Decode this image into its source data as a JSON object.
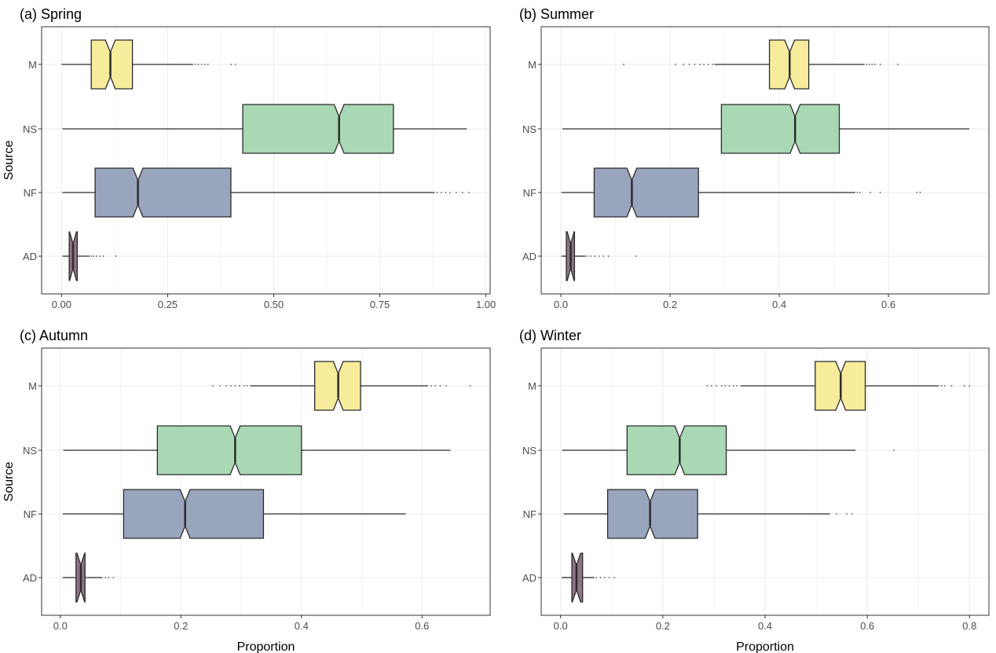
{
  "chart_data": [
    {
      "type": "boxplot",
      "orientation": "horizontal",
      "notched": true,
      "title": "(a) Spring",
      "xlabel": "",
      "ylabel": "Source",
      "xlim": [
        -0.047,
        1.01
      ],
      "xticks": [
        0,
        0.25,
        0.5,
        0.75,
        1.0
      ],
      "xtick_labels": [
        "0.00",
        "0.25",
        "0.50",
        "0.75",
        "1.00"
      ],
      "categories": [
        "M",
        "NS",
        "NF",
        "AD"
      ],
      "grid": true,
      "boxes": [
        {
          "category": "M",
          "whisker_low": 0.0,
          "q1": 0.07,
          "median": 0.115,
          "q3": 0.167,
          "whisker_high": 0.31,
          "outliers": [
            0.315,
            0.322,
            0.33,
            0.338,
            0.345,
            0.4,
            0.41
          ]
        },
        {
          "category": "NS",
          "whisker_low": 0.002,
          "q1": 0.427,
          "median": 0.654,
          "q3": 0.782,
          "whisker_high": 0.955,
          "outliers": []
        },
        {
          "category": "NF",
          "whisker_low": 0.002,
          "q1": 0.079,
          "median": 0.18,
          "q3": 0.399,
          "whisker_high": 0.879,
          "outliers": [
            0.885,
            0.895,
            0.905,
            0.915,
            0.93,
            0.945,
            0.96
          ]
        },
        {
          "category": "AD",
          "whisker_low": 0.002,
          "q1": 0.018,
          "median": 0.027,
          "q3": 0.037,
          "whisker_high": 0.066,
          "outliers": [
            0.07,
            0.075,
            0.082,
            0.09,
            0.098,
            0.128
          ]
        }
      ]
    },
    {
      "type": "boxplot",
      "orientation": "horizontal",
      "notched": true,
      "title": "(b) Summer",
      "xlabel": "",
      "ylabel": "",
      "xlim": [
        -0.036,
        0.784
      ],
      "xticks": [
        0,
        0.2,
        0.4,
        0.6
      ],
      "xtick_labels": [
        "0.0",
        "0.2",
        "0.4",
        "0.6"
      ],
      "categories": [
        "M",
        "NS",
        "NF",
        "AD"
      ],
      "grid": true,
      "boxes": [
        {
          "category": "M",
          "whisker_low": 0.281,
          "q1": 0.382,
          "median": 0.419,
          "q3": 0.454,
          "whisker_high": 0.556,
          "outliers": [
            0.115,
            0.21,
            0.225,
            0.235,
            0.245,
            0.255,
            0.262,
            0.27,
            0.278,
            0.56,
            0.565,
            0.57,
            0.575,
            0.585,
            0.617
          ]
        },
        {
          "category": "NS",
          "whisker_low": 0.003,
          "q1": 0.294,
          "median": 0.429,
          "q3": 0.51,
          "whisker_high": 0.748,
          "outliers": []
        },
        {
          "category": "NF",
          "whisker_low": 0.001,
          "q1": 0.061,
          "median": 0.13,
          "q3": 0.252,
          "whisker_high": 0.539,
          "outliers": [
            0.543,
            0.548,
            0.567,
            0.585,
            0.652,
            0.658
          ]
        },
        {
          "category": "AD",
          "whisker_low": 0.001,
          "q1": 0.01,
          "median": 0.018,
          "q3": 0.025,
          "whisker_high": 0.045,
          "outliers": [
            0.048,
            0.055,
            0.062,
            0.07,
            0.078,
            0.087,
            0.137
          ]
        }
      ]
    },
    {
      "type": "boxplot",
      "orientation": "horizontal",
      "notched": true,
      "title": "(c) Autumn",
      "xlabel": "Proportion",
      "ylabel": "Source",
      "xlim": [
        -0.031,
        0.713
      ],
      "xticks": [
        0,
        0.2,
        0.4,
        0.6
      ],
      "xtick_labels": [
        "0.0",
        "0.2",
        "0.4",
        "0.6"
      ],
      "categories": [
        "M",
        "NS",
        "NF",
        "AD"
      ],
      "grid": true,
      "boxes": [
        {
          "category": "M",
          "whisker_low": 0.315,
          "q1": 0.422,
          "median": 0.461,
          "q3": 0.498,
          "whisker_high": 0.61,
          "outliers": [
            0.253,
            0.265,
            0.275,
            0.283,
            0.29,
            0.297,
            0.305,
            0.31,
            0.615,
            0.622,
            0.63,
            0.64,
            0.68
          ]
        },
        {
          "category": "NS",
          "whisker_low": 0.005,
          "q1": 0.161,
          "median": 0.29,
          "q3": 0.4,
          "whisker_high": 0.647,
          "outliers": []
        },
        {
          "category": "NF",
          "whisker_low": 0.004,
          "q1": 0.105,
          "median": 0.207,
          "q3": 0.337,
          "whisker_high": 0.573,
          "outliers": []
        },
        {
          "category": "AD",
          "whisker_low": 0.004,
          "q1": 0.026,
          "median": 0.034,
          "q3": 0.041,
          "whisker_high": 0.07,
          "outliers": [
            0.075,
            0.08,
            0.088
          ]
        }
      ]
    },
    {
      "type": "boxplot",
      "orientation": "horizontal",
      "notched": true,
      "title": "(d) Winter",
      "xlabel": "Proportion",
      "ylabel": "",
      "xlim": [
        -0.038,
        0.838
      ],
      "xticks": [
        0,
        0.2,
        0.4,
        0.6,
        0.8
      ],
      "xtick_labels": [
        "0.0",
        "0.2",
        "0.4",
        "0.6",
        "0.8"
      ],
      "categories": [
        "M",
        "NS",
        "NF",
        "AD"
      ],
      "grid": true,
      "boxes": [
        {
          "category": "M",
          "whisker_low": 0.352,
          "q1": 0.498,
          "median": 0.548,
          "q3": 0.596,
          "whisker_high": 0.74,
          "outliers": [
            0.287,
            0.295,
            0.305,
            0.315,
            0.322,
            0.33,
            0.338,
            0.345,
            0.745,
            0.752,
            0.765,
            0.79,
            0.8
          ]
        },
        {
          "category": "NS",
          "whisker_low": 0.003,
          "q1": 0.13,
          "median": 0.233,
          "q3": 0.324,
          "whisker_high": 0.577,
          "outliers": [
            0.652
          ]
        },
        {
          "category": "NF",
          "whisker_low": 0.006,
          "q1": 0.092,
          "median": 0.175,
          "q3": 0.268,
          "whisker_high": 0.527,
          "outliers": [
            0.54,
            0.56,
            0.57
          ]
        },
        {
          "category": "AD",
          "whisker_low": 0.002,
          "q1": 0.022,
          "median": 0.031,
          "q3": 0.043,
          "whisker_high": 0.066,
          "outliers": [
            0.07,
            0.078,
            0.086,
            0.095,
            0.105
          ]
        }
      ]
    }
  ],
  "colors": {
    "M": "#f6ec9c",
    "NS": "#a9d8b4",
    "NF": "#99a5bd",
    "AD": "#8e7385",
    "outline": "#2b2b2b",
    "grid": "#ebebeb",
    "panel_border": "#333333"
  }
}
